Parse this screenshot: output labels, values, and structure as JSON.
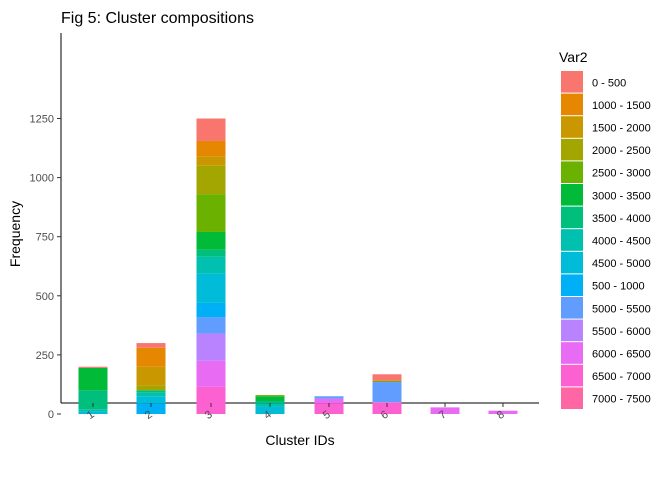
{
  "chart_data": {
    "type": "bar",
    "stacked": true,
    "title": "Fig 5: Cluster compositions",
    "xlabel": "Cluster IDs",
    "ylabel": "Frequency",
    "ylim": [
      0,
      1270
    ],
    "yticks": [
      0,
      250,
      500,
      750,
      1000,
      1250
    ],
    "grid": false,
    "legend_title": "Var2",
    "legend_position": "right",
    "categories": [
      "1",
      "2",
      "3",
      "4",
      "5",
      "6",
      "7",
      "8"
    ],
    "series": [
      {
        "name": "0 - 500",
        "color": "#F8766D",
        "values": [
          5,
          20,
          95,
          0,
          0,
          28,
          0,
          0
        ]
      },
      {
        "name": "1000 - 1500",
        "color": "#E58700",
        "values": [
          0,
          80,
          65,
          0,
          0,
          0,
          0,
          0
        ]
      },
      {
        "name": "1500 - 2000",
        "color": "#C99800",
        "values": [
          0,
          80,
          40,
          0,
          0,
          0,
          0,
          0
        ]
      },
      {
        "name": "2000 - 2500",
        "color": "#A3A500",
        "values": [
          0,
          20,
          120,
          0,
          0,
          0,
          0,
          0
        ]
      },
      {
        "name": "2500 - 3000",
        "color": "#6BB100",
        "values": [
          0,
          0,
          160,
          5,
          0,
          5,
          0,
          0
        ]
      },
      {
        "name": "3000 - 3500",
        "color": "#00BA38",
        "values": [
          95,
          0,
          75,
          20,
          0,
          0,
          0,
          0
        ]
      },
      {
        "name": "3500 - 4000",
        "color": "#00BF7D",
        "values": [
          80,
          10,
          30,
          10,
          0,
          0,
          0,
          0
        ]
      },
      {
        "name": "4000 - 4500",
        "color": "#00C0AF",
        "values": [
          10,
          15,
          70,
          15,
          0,
          0,
          0,
          0
        ]
      },
      {
        "name": "4500 - 5000",
        "color": "#00BCD8",
        "values": [
          10,
          30,
          125,
          30,
          0,
          0,
          0,
          0
        ]
      },
      {
        "name": "500 - 1000",
        "color": "#00B0F6",
        "values": [
          0,
          45,
          60,
          0,
          0,
          0,
          0,
          0
        ]
      },
      {
        "name": "5000 - 5500",
        "color": "#619CFF",
        "values": [
          0,
          0,
          70,
          0,
          10,
          85,
          0,
          0
        ]
      },
      {
        "name": "5500 - 6000",
        "color": "#B983FF",
        "values": [
          0,
          0,
          115,
          0,
          0,
          0,
          0,
          0
        ]
      },
      {
        "name": "6000 - 6500",
        "color": "#E76BF3",
        "values": [
          0,
          0,
          110,
          0,
          20,
          0,
          28,
          14
        ]
      },
      {
        "name": "6500 - 7000",
        "color": "#FD61D1",
        "values": [
          0,
          0,
          115,
          0,
          45,
          50,
          0,
          0
        ]
      },
      {
        "name": "7000 - 7500",
        "color": "#FF67A4",
        "values": [
          0,
          0,
          0,
          0,
          0,
          0,
          0,
          0
        ]
      }
    ]
  }
}
